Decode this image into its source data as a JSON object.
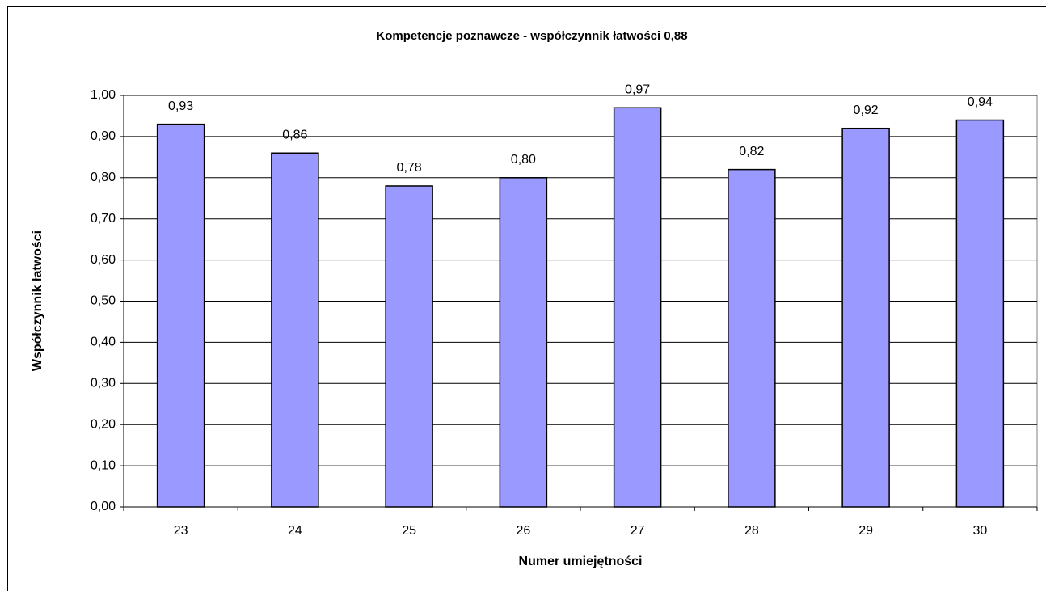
{
  "chart_data": {
    "type": "bar",
    "title": "Kompetencje poznawcze - współczynnik łatwości 0,88",
    "xlabel": "Numer umiejętności",
    "ylabel": "Współczynnik łatwości",
    "categories": [
      "23",
      "24",
      "25",
      "26",
      "27",
      "28",
      "29",
      "30"
    ],
    "values": [
      0.93,
      0.86,
      0.78,
      0.8,
      0.97,
      0.82,
      0.92,
      0.94
    ],
    "value_labels": [
      "0,93",
      "0,86",
      "0,78",
      "0,80",
      "0,97",
      "0,82",
      "0,92",
      "0,94"
    ],
    "color": "#9999ff",
    "ylim": [
      0,
      1
    ],
    "yticks": [
      {
        "value": 0,
        "label": "0,00"
      },
      {
        "value": 0.1,
        "label": "0,10"
      },
      {
        "value": 0.2,
        "label": "0,20"
      },
      {
        "value": 0.3,
        "label": "0,30"
      },
      {
        "value": 0.4,
        "label": "0,40"
      },
      {
        "value": 0.5,
        "label": "0,50"
      },
      {
        "value": 0.6,
        "label": "0,60"
      },
      {
        "value": 0.7,
        "label": "0,70"
      },
      {
        "value": 0.8,
        "label": "0,80"
      },
      {
        "value": 0.9,
        "label": "0,90"
      },
      {
        "value": 1,
        "label": "1,00"
      }
    ],
    "grid": true
  }
}
